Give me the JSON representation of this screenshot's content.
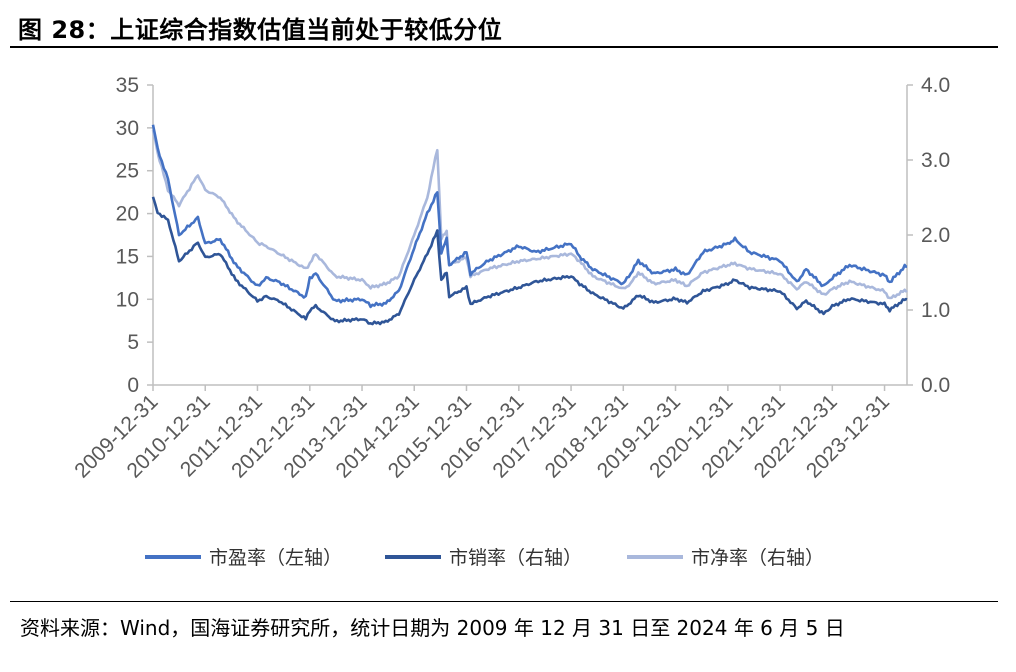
{
  "title": "图 28：上证综合指数估值当前处于较低分位",
  "source": "资料来源：Wind，国海证券研究所，统计日期为 2009 年 12 月 31 日至 2024 年 6 月 5 日",
  "chart_data": {
    "type": "line",
    "title": "图 28：上证综合指数估值当前处于较低分位",
    "x_tick_labels": [
      "2009-12-31",
      "2010-12-31",
      "2011-12-31",
      "2012-12-31",
      "2013-12-31",
      "2014-12-31",
      "2015-12-31",
      "2016-12-31",
      "2017-12-31",
      "2018-12-31",
      "2019-12-31",
      "2020-12-31",
      "2021-12-31",
      "2022-12-31",
      "2023-12-31"
    ],
    "x_range": [
      "2009-12-31",
      "2024-06-05"
    ],
    "y_left": {
      "ticks": [
        "0",
        "5",
        "10",
        "15",
        "20",
        "25",
        "30",
        "35"
      ],
      "ylim": [
        0,
        35
      ]
    },
    "y_right": {
      "ticks": [
        "0.0",
        "1.0",
        "2.0",
        "3.0",
        "4.0"
      ],
      "ylim": [
        0,
        4
      ]
    },
    "grid": false,
    "legend_position": "bottom",
    "series": [
      {
        "name": "市盈率（左轴）",
        "axis": "left",
        "color": "#4472C4",
        "points": [
          [
            "2009-12-31",
            30.5
          ],
          [
            "2010-02-01",
            27.5
          ],
          [
            "2010-04-15",
            24.0
          ],
          [
            "2010-07-01",
            17.5
          ],
          [
            "2010-11-10",
            19.5
          ],
          [
            "2010-12-31",
            16.5
          ],
          [
            "2011-04-15",
            17.0
          ],
          [
            "2011-08-01",
            14.0
          ],
          [
            "2011-12-31",
            11.5
          ],
          [
            "2012-03-01",
            12.5
          ],
          [
            "2012-06-01",
            12.0
          ],
          [
            "2012-12-03",
            10.2
          ],
          [
            "2012-12-31",
            12.5
          ],
          [
            "2013-02-10",
            13.0
          ],
          [
            "2013-06-25",
            9.8
          ],
          [
            "2013-12-31",
            10.0
          ],
          [
            "2014-03-01",
            9.3
          ],
          [
            "2014-06-15",
            9.5
          ],
          [
            "2014-09-15",
            11.0
          ],
          [
            "2014-12-31",
            16.0
          ],
          [
            "2015-04-01",
            20.0
          ],
          [
            "2015-06-10",
            22.5
          ],
          [
            "2015-07-08",
            15.5
          ],
          [
            "2015-08-15",
            17.0
          ],
          [
            "2015-09-01",
            14.0
          ],
          [
            "2015-12-31",
            15.5
          ],
          [
            "2016-01-28",
            13.0
          ],
          [
            "2016-06-01",
            14.5
          ],
          [
            "2016-12-31",
            16.2
          ],
          [
            "2017-05-01",
            15.5
          ],
          [
            "2017-12-31",
            16.5
          ],
          [
            "2018-03-01",
            15.0
          ],
          [
            "2018-06-01",
            13.5
          ],
          [
            "2018-12-31",
            11.8
          ],
          [
            "2019-02-20",
            13.0
          ],
          [
            "2019-04-15",
            14.5
          ],
          [
            "2019-08-01",
            13.0
          ],
          [
            "2019-12-31",
            13.5
          ],
          [
            "2020-03-20",
            12.8
          ],
          [
            "2020-07-10",
            15.5
          ],
          [
            "2020-12-31",
            16.5
          ],
          [
            "2021-02-18",
            17.0
          ],
          [
            "2021-06-01",
            15.5
          ],
          [
            "2021-12-31",
            14.5
          ],
          [
            "2022-04-27",
            12.0
          ],
          [
            "2022-07-01",
            13.5
          ],
          [
            "2022-10-31",
            11.5
          ],
          [
            "2022-12-31",
            12.5
          ],
          [
            "2023-05-01",
            14.0
          ],
          [
            "2023-12-31",
            12.8
          ],
          [
            "2024-02-05",
            12.0
          ],
          [
            "2024-05-20",
            13.8
          ],
          [
            "2024-06-05",
            13.8
          ]
        ]
      },
      {
        "name": "市销率（右轴）",
        "axis": "right",
        "color": "#2F5597",
        "points": [
          [
            "2009-12-31",
            2.5
          ],
          [
            "2010-02-01",
            2.3
          ],
          [
            "2010-04-15",
            2.2
          ],
          [
            "2010-07-01",
            1.65
          ],
          [
            "2010-11-10",
            1.9
          ],
          [
            "2010-12-31",
            1.7
          ],
          [
            "2011-04-15",
            1.75
          ],
          [
            "2011-08-01",
            1.4
          ],
          [
            "2011-12-31",
            1.12
          ],
          [
            "2012-03-01",
            1.18
          ],
          [
            "2012-06-01",
            1.12
          ],
          [
            "2012-12-03",
            0.88
          ],
          [
            "2012-12-31",
            1.0
          ],
          [
            "2013-02-10",
            1.05
          ],
          [
            "2013-06-25",
            0.85
          ],
          [
            "2013-12-31",
            0.88
          ],
          [
            "2014-03-01",
            0.82
          ],
          [
            "2014-06-15",
            0.84
          ],
          [
            "2014-09-15",
            0.95
          ],
          [
            "2014-12-31",
            1.4
          ],
          [
            "2015-04-01",
            1.75
          ],
          [
            "2015-06-10",
            2.05
          ],
          [
            "2015-07-08",
            1.4
          ],
          [
            "2015-08-15",
            1.5
          ],
          [
            "2015-09-01",
            1.18
          ],
          [
            "2015-12-31",
            1.3
          ],
          [
            "2016-01-28",
            1.08
          ],
          [
            "2016-06-01",
            1.18
          ],
          [
            "2016-12-31",
            1.3
          ],
          [
            "2017-05-01",
            1.38
          ],
          [
            "2017-12-31",
            1.45
          ],
          [
            "2018-03-01",
            1.35
          ],
          [
            "2018-06-01",
            1.22
          ],
          [
            "2018-12-31",
            1.02
          ],
          [
            "2019-02-20",
            1.1
          ],
          [
            "2019-04-15",
            1.2
          ],
          [
            "2019-08-01",
            1.1
          ],
          [
            "2019-12-31",
            1.15
          ],
          [
            "2020-03-20",
            1.1
          ],
          [
            "2020-07-10",
            1.25
          ],
          [
            "2020-12-31",
            1.35
          ],
          [
            "2021-02-18",
            1.4
          ],
          [
            "2021-06-01",
            1.3
          ],
          [
            "2021-12-31",
            1.25
          ],
          [
            "2022-04-27",
            1.02
          ],
          [
            "2022-07-01",
            1.12
          ],
          [
            "2022-10-31",
            0.95
          ],
          [
            "2022-12-31",
            1.05
          ],
          [
            "2023-05-01",
            1.15
          ],
          [
            "2023-12-31",
            1.08
          ],
          [
            "2024-02-05",
            1.0
          ],
          [
            "2024-05-20",
            1.14
          ],
          [
            "2024-06-05",
            1.14
          ]
        ]
      },
      {
        "name": "市净率（右轴）",
        "axis": "right",
        "color": "#A9B8DC",
        "points": [
          [
            "2009-12-31",
            3.4
          ],
          [
            "2010-02-01",
            3.1
          ],
          [
            "2010-04-15",
            2.6
          ],
          [
            "2010-07-01",
            2.4
          ],
          [
            "2010-11-10",
            2.8
          ],
          [
            "2010-12-31",
            2.6
          ],
          [
            "2011-04-15",
            2.5
          ],
          [
            "2011-08-01",
            2.2
          ],
          [
            "2011-12-31",
            1.9
          ],
          [
            "2012-03-01",
            1.85
          ],
          [
            "2012-06-01",
            1.75
          ],
          [
            "2012-12-03",
            1.55
          ],
          [
            "2012-12-31",
            1.62
          ],
          [
            "2013-02-10",
            1.75
          ],
          [
            "2013-06-25",
            1.45
          ],
          [
            "2013-12-31",
            1.4
          ],
          [
            "2014-03-01",
            1.3
          ],
          [
            "2014-06-15",
            1.35
          ],
          [
            "2014-09-15",
            1.45
          ],
          [
            "2014-12-31",
            2.0
          ],
          [
            "2015-04-01",
            2.5
          ],
          [
            "2015-06-10",
            3.15
          ],
          [
            "2015-07-08",
            1.95
          ],
          [
            "2015-08-15",
            2.05
          ],
          [
            "2015-09-01",
            1.6
          ],
          [
            "2015-12-31",
            1.7
          ],
          [
            "2016-01-28",
            1.45
          ],
          [
            "2016-06-01",
            1.55
          ],
          [
            "2016-12-31",
            1.65
          ],
          [
            "2017-05-01",
            1.68
          ],
          [
            "2017-12-31",
            1.75
          ],
          [
            "2018-03-01",
            1.65
          ],
          [
            "2018-06-01",
            1.45
          ],
          [
            "2018-12-31",
            1.28
          ],
          [
            "2019-02-20",
            1.35
          ],
          [
            "2019-04-15",
            1.5
          ],
          [
            "2019-08-01",
            1.35
          ],
          [
            "2019-12-31",
            1.4
          ],
          [
            "2020-03-20",
            1.32
          ],
          [
            "2020-07-10",
            1.5
          ],
          [
            "2020-12-31",
            1.6
          ],
          [
            "2021-02-18",
            1.62
          ],
          [
            "2021-06-01",
            1.55
          ],
          [
            "2021-12-31",
            1.48
          ],
          [
            "2022-04-27",
            1.28
          ],
          [
            "2022-07-01",
            1.38
          ],
          [
            "2022-10-31",
            1.2
          ],
          [
            "2022-12-31",
            1.28
          ],
          [
            "2023-05-01",
            1.38
          ],
          [
            "2023-12-31",
            1.25
          ],
          [
            "2024-02-05",
            1.15
          ],
          [
            "2024-05-20",
            1.26
          ],
          [
            "2024-06-05",
            1.26
          ]
        ]
      }
    ]
  }
}
